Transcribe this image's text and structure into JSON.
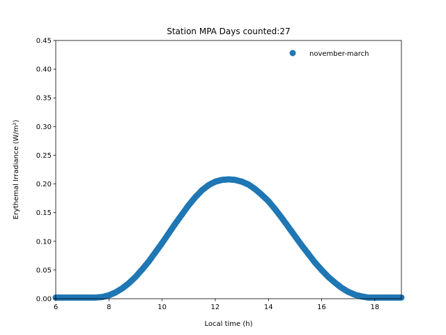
{
  "chart_data": {
    "type": "scatter",
    "title": "Station MPA Days counted:27",
    "xlabel": "Local time (h)",
    "ylabel": "Erythemal Irradiance (W/m²)",
    "xlim": [
      6,
      19
    ],
    "ylim": [
      0,
      0.45
    ],
    "xticks": [
      6,
      8,
      10,
      12,
      14,
      16,
      18
    ],
    "xtick_labels": [
      "6",
      "8",
      "10",
      "12",
      "14",
      "16",
      "18"
    ],
    "yticks": [
      0,
      0.05,
      0.1,
      0.15,
      0.2,
      0.25,
      0.3,
      0.35,
      0.4,
      0.45
    ],
    "ytick_labels": [
      "0.00",
      "0.05",
      "0.10",
      "0.15",
      "0.20",
      "0.25",
      "0.30",
      "0.35",
      "0.40",
      "0.45"
    ],
    "grid": false,
    "legend_position": "top-right",
    "series": [
      {
        "name": "november-march",
        "color": "#1f77b4",
        "x": [
          6.0,
          6.25,
          6.5,
          6.75,
          7.0,
          7.25,
          7.5,
          7.75,
          8.0,
          8.25,
          8.5,
          8.75,
          9.0,
          9.25,
          9.5,
          9.75,
          10.0,
          10.25,
          10.5,
          10.75,
          11.0,
          11.25,
          11.5,
          11.75,
          12.0,
          12.25,
          12.5,
          12.75,
          13.0,
          13.25,
          13.5,
          13.75,
          14.0,
          14.25,
          14.5,
          14.75,
          15.0,
          15.25,
          15.5,
          15.75,
          16.0,
          16.25,
          16.5,
          16.75,
          17.0,
          17.25,
          17.5,
          17.75,
          18.0,
          18.25,
          18.5,
          18.75,
          19.0
        ],
        "y": [
          0.002,
          0.002,
          0.002,
          0.002,
          0.002,
          0.002,
          0.002,
          0.003,
          0.006,
          0.011,
          0.018,
          0.027,
          0.038,
          0.051,
          0.065,
          0.081,
          0.097,
          0.114,
          0.131,
          0.147,
          0.163,
          0.177,
          0.189,
          0.198,
          0.204,
          0.207,
          0.208,
          0.207,
          0.204,
          0.199,
          0.191,
          0.181,
          0.17,
          0.156,
          0.141,
          0.125,
          0.109,
          0.093,
          0.078,
          0.063,
          0.05,
          0.038,
          0.028,
          0.019,
          0.012,
          0.007,
          0.004,
          0.002,
          0.002,
          0.002,
          0.002,
          0.002,
          0.002
        ]
      }
    ]
  }
}
